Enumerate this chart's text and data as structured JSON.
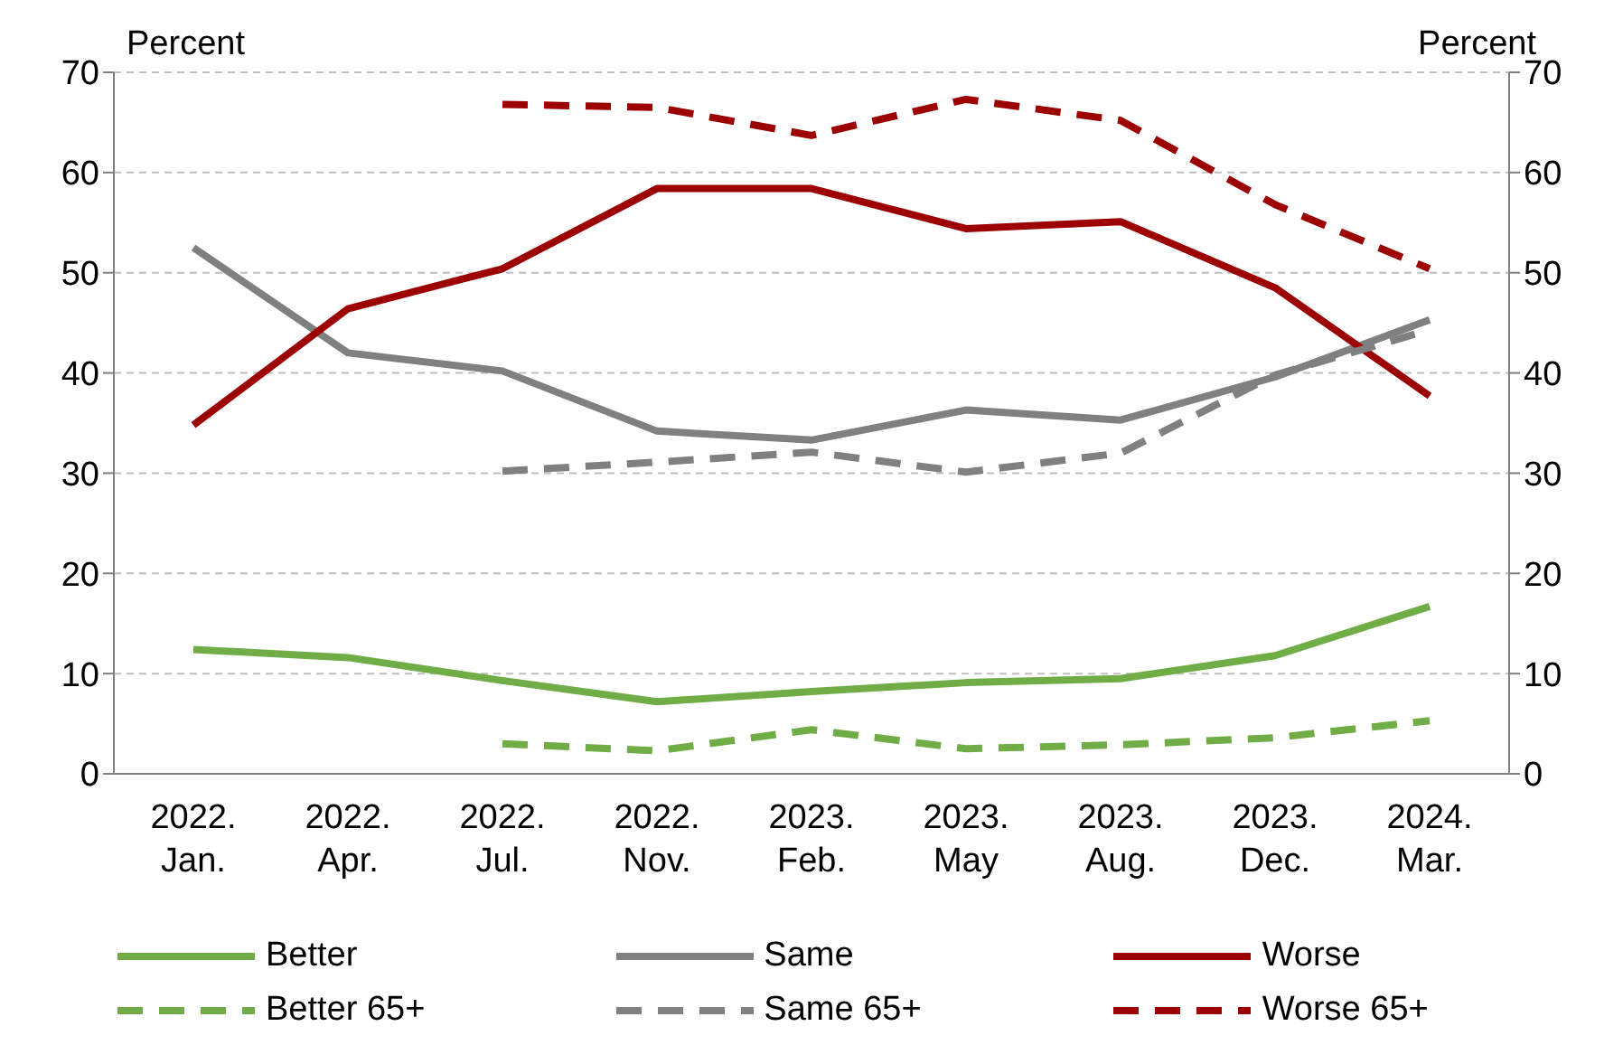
{
  "chart_data": {
    "type": "line",
    "ylabel": "Percent",
    "y2label": "Percent",
    "categories": [
      "2022. Jan.",
      "2022. Apr.",
      "2022. Jul.",
      "2022. Nov.",
      "2023. Feb.",
      "2023. May",
      "2023. Aug.",
      "2023. Dec.",
      "2024. Mar."
    ],
    "ylim": [
      0,
      70
    ],
    "yticks": [
      0,
      10,
      20,
      30,
      40,
      50,
      60,
      70
    ],
    "y2lim": [
      0,
      70
    ],
    "y2ticks": [
      0,
      10,
      20,
      30,
      40,
      50,
      60,
      70
    ],
    "grid": "y",
    "legend": "bottom",
    "marker": "none",
    "series": [
      {
        "name": "Better",
        "color": "#70ad47",
        "line_style": "solid",
        "values": [
          12.4,
          11.6,
          9.3,
          7.2,
          8.2,
          9.1,
          9.5,
          11.8,
          16.7
        ]
      },
      {
        "name": "Same",
        "color": "#808080",
        "line_style": "solid",
        "values": [
          52.5,
          42,
          40.2,
          34.2,
          33.3,
          36.3,
          35.3,
          39.6,
          45.3
        ]
      },
      {
        "name": "Worse",
        "color": "#9c0000",
        "line_style": "solid",
        "values": [
          34.8,
          46.4,
          50.4,
          58.4,
          58.4,
          54.4,
          55.1,
          48.5,
          37.7
        ]
      },
      {
        "name": "Better 65+",
        "color": "#70ad47",
        "line_style": "dashed",
        "values": [
          null,
          null,
          3,
          2.3,
          4.4,
          2.5,
          2.9,
          3.6,
          5.3
        ]
      },
      {
        "name": "Same 65+",
        "color": "#808080",
        "line_style": "dashed",
        "values": [
          null,
          null,
          30.2,
          31.1,
          32.1,
          30.1,
          32,
          39.8,
          44.3
        ]
      },
      {
        "name": "Worse 65+",
        "color": "#9c0000",
        "line_style": "dashed",
        "values": [
          null,
          null,
          66.8,
          66.5,
          63.7,
          67.3,
          65.2,
          56.8,
          50.4
        ]
      }
    ]
  }
}
